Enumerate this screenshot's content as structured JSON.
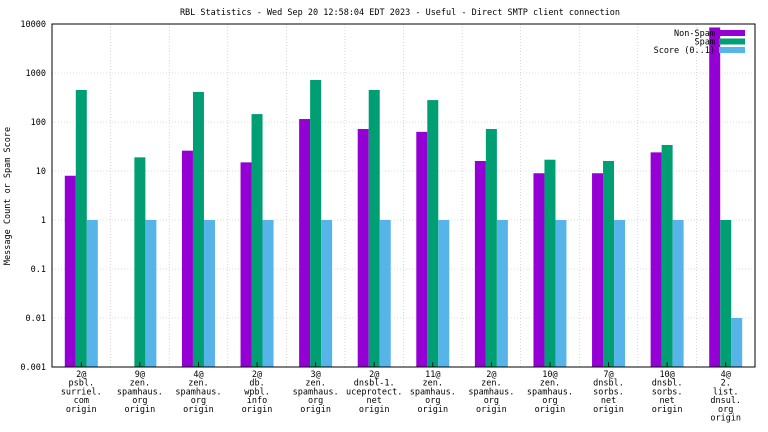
{
  "chart_data": {
    "type": "bar",
    "title": "RBL Statistics - Wed Sep 20 12:58:04 EDT 2023 - Useful - Direct SMTP client connection",
    "xlabel": "",
    "ylabel": "Message Count or Spam Score",
    "yscale": "log",
    "ylim": [
      0.001,
      10000
    ],
    "yticks": [
      "0.001",
      "0.01",
      "0.1",
      "1",
      "10",
      "100",
      "1000",
      "10000"
    ],
    "grid": true,
    "legend_position": "top-right",
    "categories": [
      [
        "2@",
        "psbl.",
        "surriel.",
        "com",
        "origin"
      ],
      [
        "9@",
        "zen.",
        "spamhaus.",
        "org",
        "origin"
      ],
      [
        "4@",
        "zen.",
        "spamhaus.",
        "org",
        "origin"
      ],
      [
        "2@",
        "db.",
        "wpbl.",
        "info",
        "origin"
      ],
      [
        "3@",
        "zen.",
        "spamhaus.",
        "org",
        "origin"
      ],
      [
        "2@",
        "dnsbl-1.",
        "uceprotect.",
        "net",
        "origin"
      ],
      [
        "11@",
        "zen.",
        "spamhaus.",
        "org",
        "origin"
      ],
      [
        "2@",
        "zen.",
        "spamhaus.",
        "org",
        "origin"
      ],
      [
        "10@",
        "zen.",
        "spamhaus.",
        "org",
        "origin"
      ],
      [
        "7@",
        "dnsbl.",
        "sorbs.",
        "net",
        "origin"
      ],
      [
        "10@",
        "dnsbl.",
        "sorbs.",
        "net",
        "origin"
      ],
      [
        "4@",
        "2.",
        "list.",
        "dnsul.",
        "org",
        "origin"
      ]
    ],
    "series": [
      {
        "name": "Non-Spam",
        "color": "#9400d3",
        "values": [
          8,
          null,
          26,
          15,
          115,
          72,
          63,
          16,
          9,
          9,
          24,
          8500
        ]
      },
      {
        "name": "Spam",
        "color": "#009e73",
        "values": [
          450,
          19,
          410,
          145,
          720,
          450,
          280,
          72,
          17,
          16,
          34,
          1
        ]
      },
      {
        "name": "Score (0..1)",
        "color": "#56b4e9",
        "values": [
          1,
          1,
          1,
          1,
          1,
          1,
          1,
          1,
          1,
          1,
          1,
          0.01
        ]
      }
    ]
  }
}
